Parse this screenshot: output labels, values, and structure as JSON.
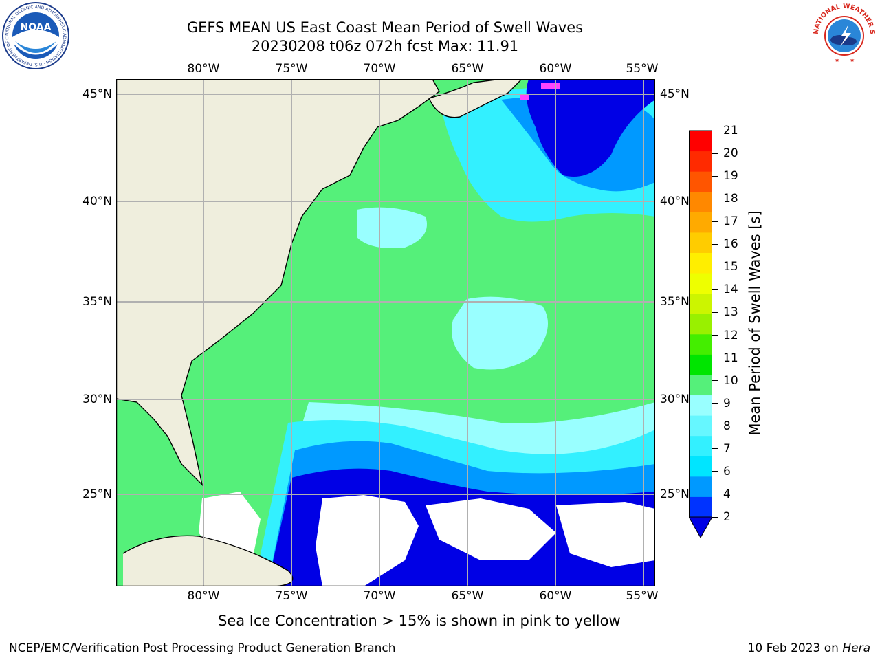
{
  "title_line1": "GEFS MEAN US East Coast Mean Period of Swell Waves",
  "title_line2": "20230208 t06z 072h fcst   Max: 11.91",
  "longitude_labels": [
    "80°W",
    "75°W",
    "70°W",
    "65°W",
    "60°W",
    "55°W"
  ],
  "latitude_labels": [
    "45°N",
    "40°N",
    "35°N",
    "30°N",
    "25°N"
  ],
  "colorbar": {
    "label": "Mean Period of Swell Waves [s]",
    "ticks": [
      "2",
      "4",
      "6",
      "7",
      "8",
      "9",
      "10",
      "11",
      "12",
      "13",
      "14",
      "15",
      "16",
      "17",
      "18",
      "19",
      "20",
      "21"
    ],
    "colors": [
      "#0033ff",
      "#0099ff",
      "#00e5ff",
      "#33f0ff",
      "#66f7ff",
      "#99ffff",
      "#55f07a",
      "#00e500",
      "#44ee00",
      "#99f000",
      "#ccf500",
      "#eeff00",
      "#ffee00",
      "#ffcc00",
      "#ffaa00",
      "#ff8800",
      "#ff5500",
      "#ff2a00",
      "#ff0000"
    ],
    "extend_min_color": "#0000e5"
  },
  "logos": {
    "noaa_text": "NOAA",
    "noaa_ring": "NATIONAL OCEANIC AND ATMOSPHERIC ADMINISTRATION · U.S. DEPARTMENT OF COMMERCE ·",
    "nws_ring": "NATIONAL WEATHER SERVICE"
  },
  "caption": "Sea Ice Concentration > 15% is shown in pink to yellow",
  "footer_left": "NCEP/EMC/Verification Post Processing Product Generation Branch",
  "footer_date": "10 Feb 2023 on ",
  "footer_machine": "Hera",
  "colors": {
    "land": "#efeedd",
    "grid": "#b0b0b0",
    "coast": "#000000"
  }
}
